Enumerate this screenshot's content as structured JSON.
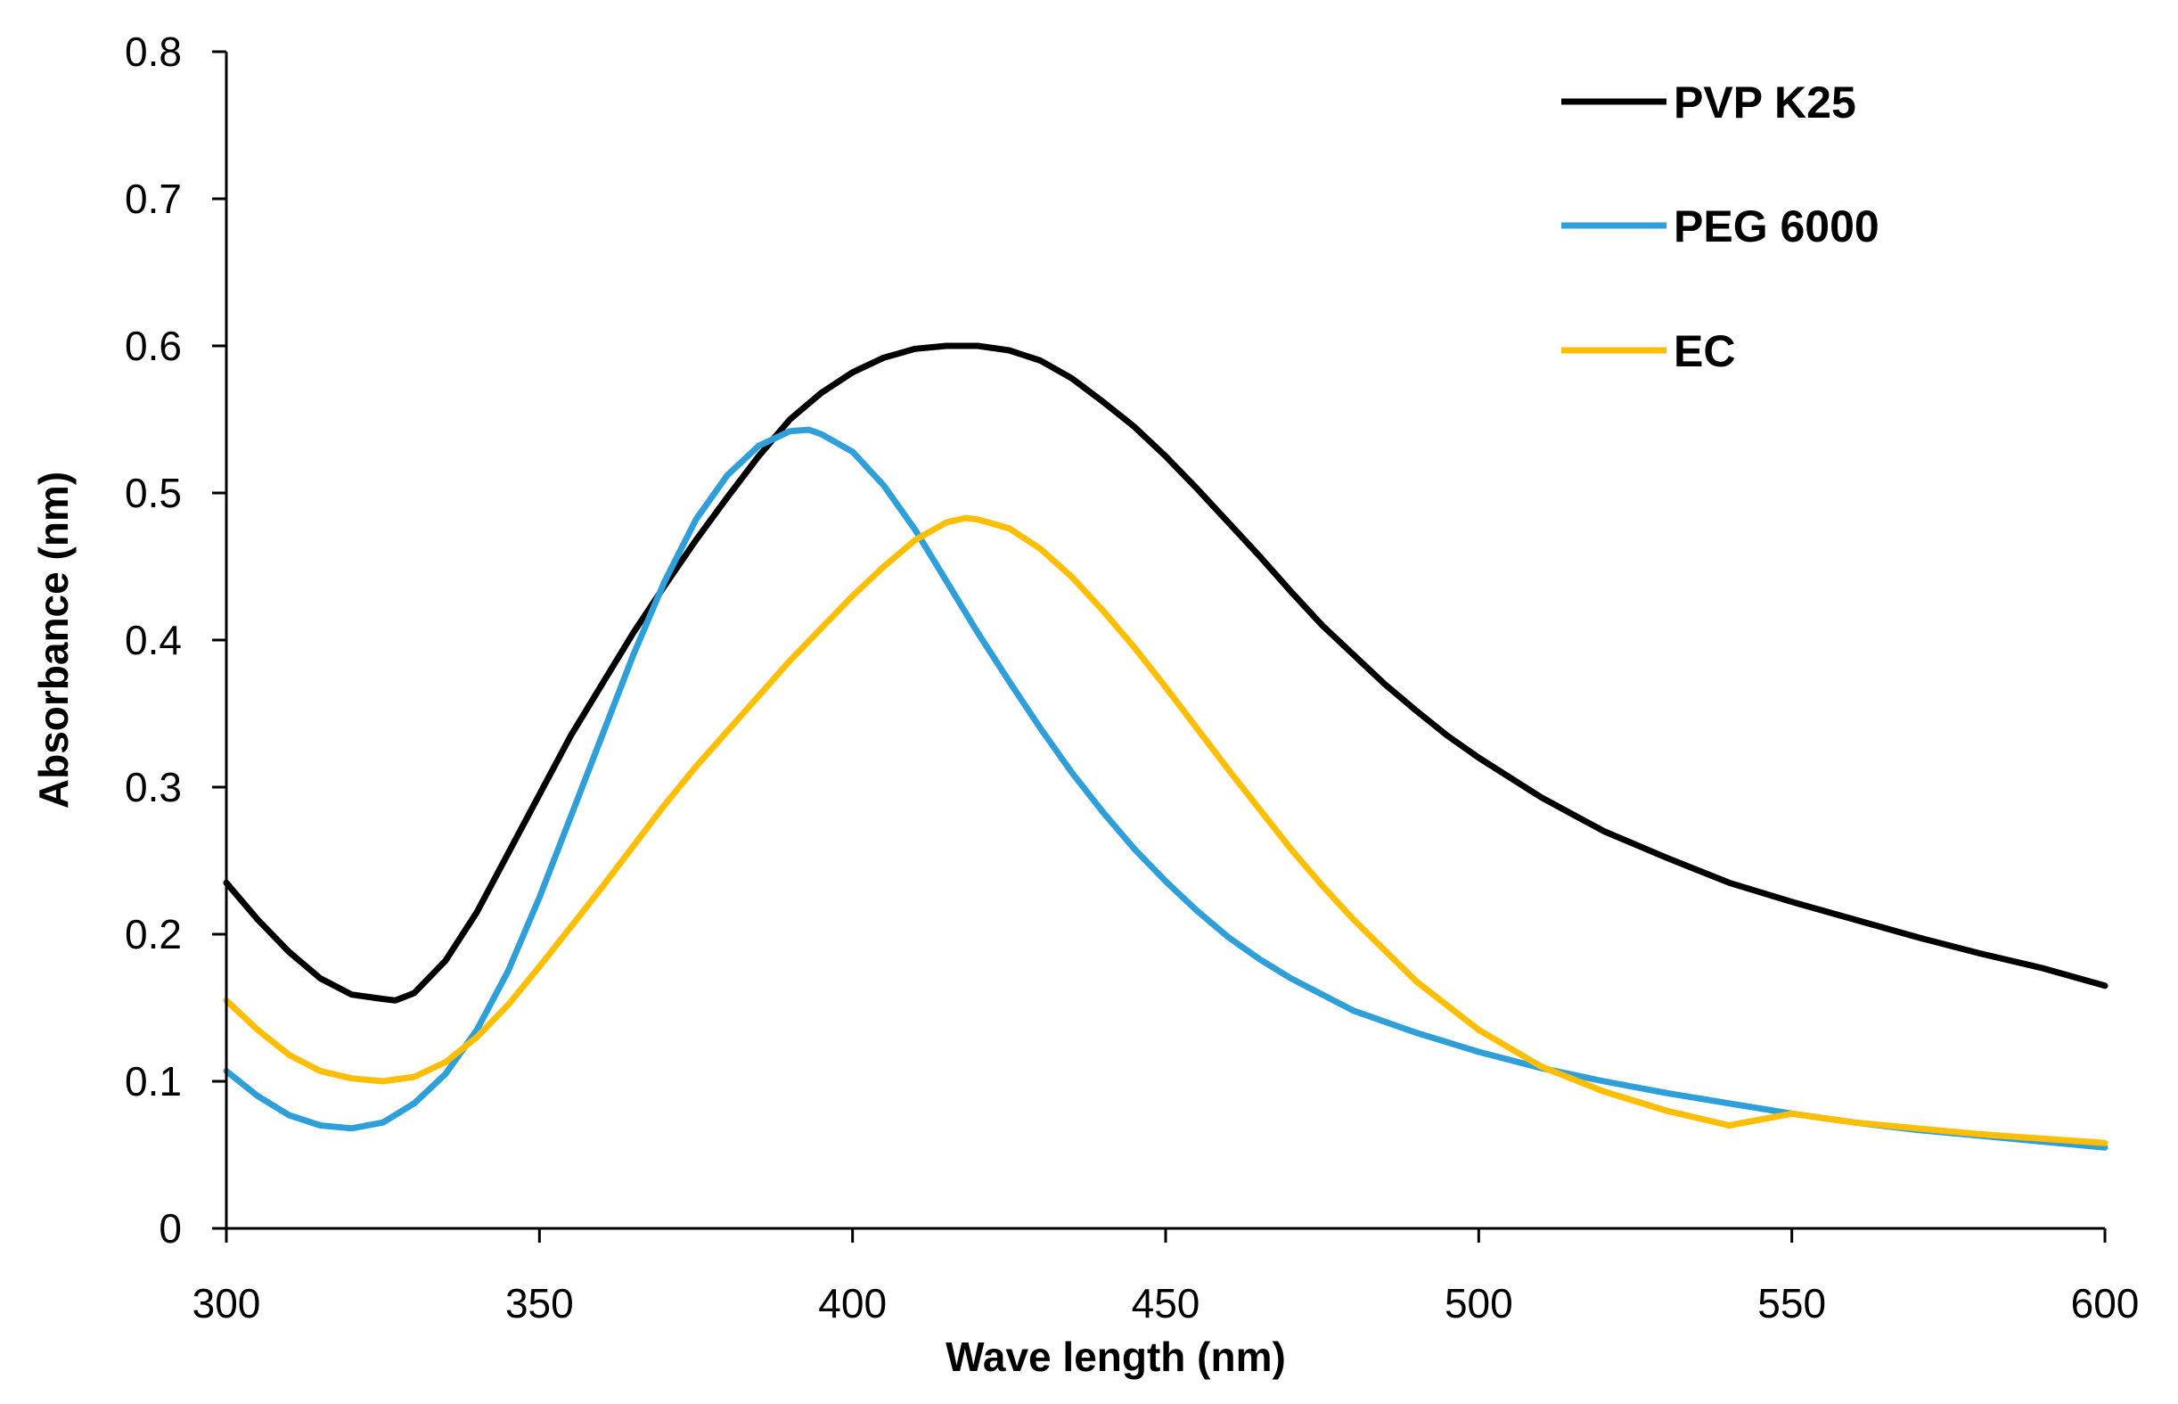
{
  "chart_data": {
    "type": "line",
    "title": "",
    "xlabel": "Wave length (nm)",
    "ylabel": "Absorbance (nm)",
    "xlim": [
      300,
      600
    ],
    "ylim": [
      0,
      0.8
    ],
    "x_ticks": [
      "300",
      "350",
      "400",
      "450",
      "500",
      "550",
      "600"
    ],
    "y_ticks": [
      "0",
      "0.1",
      "0.2",
      "0.3",
      "0.4",
      "0.5",
      "0.6",
      "0.7",
      "0.8"
    ],
    "grid": false,
    "legend_position": "top-right",
    "series": [
      {
        "name": "PVP K25",
        "color": "#000000",
        "points": [
          [
            300,
            0.235
          ],
          [
            305,
            0.21
          ],
          [
            310,
            0.188
          ],
          [
            315,
            0.17
          ],
          [
            320,
            0.159
          ],
          [
            325,
            0.156
          ],
          [
            327,
            0.155
          ],
          [
            330,
            0.16
          ],
          [
            335,
            0.182
          ],
          [
            340,
            0.215
          ],
          [
            345,
            0.255
          ],
          [
            350,
            0.295
          ],
          [
            355,
            0.335
          ],
          [
            360,
            0.37
          ],
          [
            365,
            0.405
          ],
          [
            370,
            0.437
          ],
          [
            375,
            0.468
          ],
          [
            380,
            0.497
          ],
          [
            385,
            0.525
          ],
          [
            390,
            0.55
          ],
          [
            395,
            0.568
          ],
          [
            400,
            0.582
          ],
          [
            405,
            0.592
          ],
          [
            410,
            0.598
          ],
          [
            415,
            0.6
          ],
          [
            420,
            0.6
          ],
          [
            425,
            0.597
          ],
          [
            430,
            0.59
          ],
          [
            435,
            0.578
          ],
          [
            440,
            0.562
          ],
          [
            445,
            0.545
          ],
          [
            450,
            0.525
          ],
          [
            455,
            0.503
          ],
          [
            460,
            0.48
          ],
          [
            465,
            0.457
          ],
          [
            470,
            0.433
          ],
          [
            475,
            0.41
          ],
          [
            480,
            0.39
          ],
          [
            485,
            0.37
          ],
          [
            490,
            0.352
          ],
          [
            495,
            0.335
          ],
          [
            500,
            0.32
          ],
          [
            510,
            0.293
          ],
          [
            520,
            0.27
          ],
          [
            530,
            0.252
          ],
          [
            540,
            0.235
          ],
          [
            550,
            0.222
          ],
          [
            560,
            0.21
          ],
          [
            570,
            0.198
          ],
          [
            580,
            0.187
          ],
          [
            590,
            0.177
          ],
          [
            600,
            0.165
          ]
        ]
      },
      {
        "name": "PEG 6000",
        "color": "#2E9FD9",
        "points": [
          [
            300,
            0.107
          ],
          [
            305,
            0.09
          ],
          [
            310,
            0.077
          ],
          [
            315,
            0.07
          ],
          [
            320,
            0.068
          ],
          [
            325,
            0.072
          ],
          [
            330,
            0.085
          ],
          [
            335,
            0.105
          ],
          [
            340,
            0.135
          ],
          [
            345,
            0.175
          ],
          [
            350,
            0.225
          ],
          [
            355,
            0.28
          ],
          [
            360,
            0.335
          ],
          [
            365,
            0.39
          ],
          [
            370,
            0.44
          ],
          [
            375,
            0.482
          ],
          [
            380,
            0.512
          ],
          [
            385,
            0.532
          ],
          [
            390,
            0.542
          ],
          [
            393,
            0.543
          ],
          [
            395,
            0.54
          ],
          [
            400,
            0.528
          ],
          [
            405,
            0.505
          ],
          [
            410,
            0.475
          ],
          [
            415,
            0.44
          ],
          [
            420,
            0.405
          ],
          [
            425,
            0.372
          ],
          [
            430,
            0.34
          ],
          [
            435,
            0.31
          ],
          [
            440,
            0.283
          ],
          [
            445,
            0.258
          ],
          [
            450,
            0.236
          ],
          [
            455,
            0.216
          ],
          [
            460,
            0.198
          ],
          [
            465,
            0.183
          ],
          [
            470,
            0.17
          ],
          [
            480,
            0.148
          ],
          [
            490,
            0.133
          ],
          [
            500,
            0.12
          ],
          [
            510,
            0.109
          ],
          [
            520,
            0.1
          ],
          [
            530,
            0.092
          ],
          [
            540,
            0.085
          ],
          [
            550,
            0.078
          ],
          [
            560,
            0.072
          ],
          [
            570,
            0.067
          ],
          [
            580,
            0.063
          ],
          [
            590,
            0.059
          ],
          [
            600,
            0.055
          ]
        ]
      },
      {
        "name": "EC",
        "color": "#FFBE00",
        "points": [
          [
            300,
            0.155
          ],
          [
            305,
            0.135
          ],
          [
            310,
            0.118
          ],
          [
            315,
            0.107
          ],
          [
            320,
            0.102
          ],
          [
            325,
            0.1
          ],
          [
            330,
            0.103
          ],
          [
            335,
            0.113
          ],
          [
            340,
            0.13
          ],
          [
            345,
            0.152
          ],
          [
            350,
            0.178
          ],
          [
            355,
            0.205
          ],
          [
            360,
            0.232
          ],
          [
            365,
            0.26
          ],
          [
            370,
            0.288
          ],
          [
            375,
            0.314
          ],
          [
            380,
            0.338
          ],
          [
            385,
            0.362
          ],
          [
            390,
            0.386
          ],
          [
            395,
            0.408
          ],
          [
            400,
            0.43
          ],
          [
            405,
            0.45
          ],
          [
            410,
            0.468
          ],
          [
            415,
            0.48
          ],
          [
            418,
            0.483
          ],
          [
            420,
            0.482
          ],
          [
            425,
            0.476
          ],
          [
            430,
            0.462
          ],
          [
            435,
            0.443
          ],
          [
            440,
            0.42
          ],
          [
            445,
            0.395
          ],
          [
            450,
            0.368
          ],
          [
            455,
            0.34
          ],
          [
            460,
            0.312
          ],
          [
            465,
            0.285
          ],
          [
            470,
            0.258
          ],
          [
            475,
            0.233
          ],
          [
            480,
            0.21
          ],
          [
            490,
            0.168
          ],
          [
            500,
            0.135
          ],
          [
            510,
            0.11
          ],
          [
            520,
            0.093
          ],
          [
            530,
            0.08
          ],
          [
            540,
            0.07
          ],
          [
            550,
            0.078
          ],
          [
            560,
            0.072
          ],
          [
            570,
            0.068
          ],
          [
            580,
            0.064
          ],
          [
            590,
            0.061
          ],
          [
            600,
            0.058
          ]
        ]
      }
    ]
  }
}
